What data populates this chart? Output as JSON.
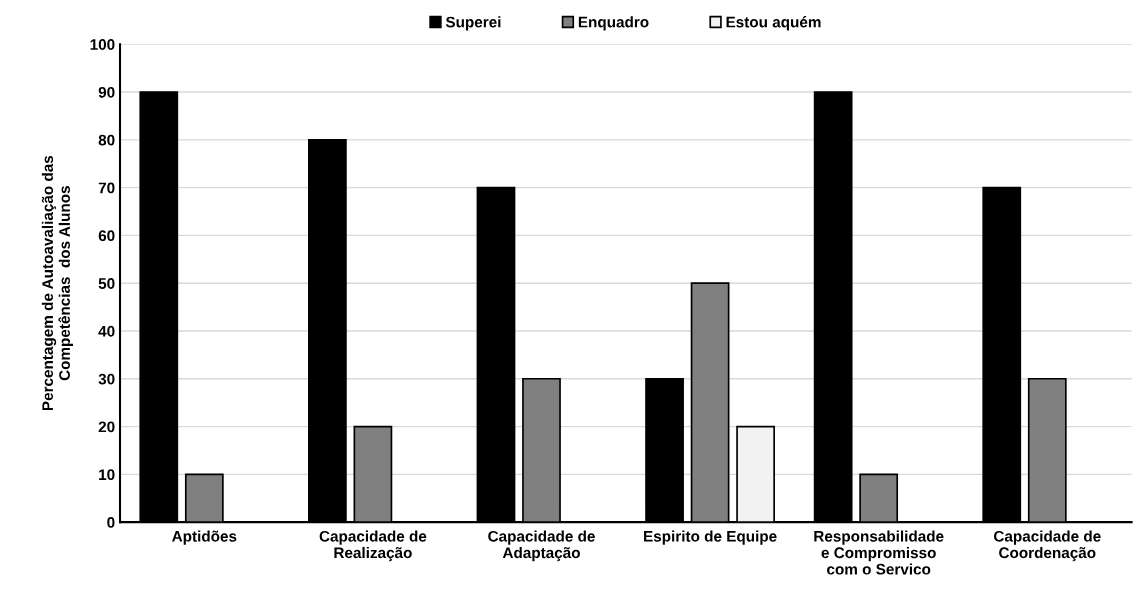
{
  "chart_data": {
    "type": "bar",
    "ylabel": "Percentagem de Autoavaliação das\nCompetências  dos Alunos",
    "categories": [
      "Aptidões",
      "Capacidade de\nRealização",
      "Capacidade de\nAdaptação",
      "Espirito de Equipe",
      "Responsabilidade\ne Compromisso\ncom o Servico",
      "Capacidade de\nCoordenação"
    ],
    "series": [
      {
        "name": "Superei",
        "color": "#000000",
        "values": [
          90,
          80,
          70,
          30,
          90,
          70
        ]
      },
      {
        "name": "Enquadro",
        "color": "#808080",
        "values": [
          10,
          20,
          30,
          50,
          10,
          30
        ]
      },
      {
        "name": "Estou aquém",
        "color": "#f2f2f2",
        "values": [
          null,
          null,
          null,
          20,
          null,
          null
        ]
      }
    ],
    "ylim": [
      0,
      100
    ],
    "yticks": [
      0,
      10,
      20,
      30,
      40,
      50,
      60,
      70,
      80,
      90,
      100
    ],
    "grid": "y",
    "legend": "top"
  }
}
